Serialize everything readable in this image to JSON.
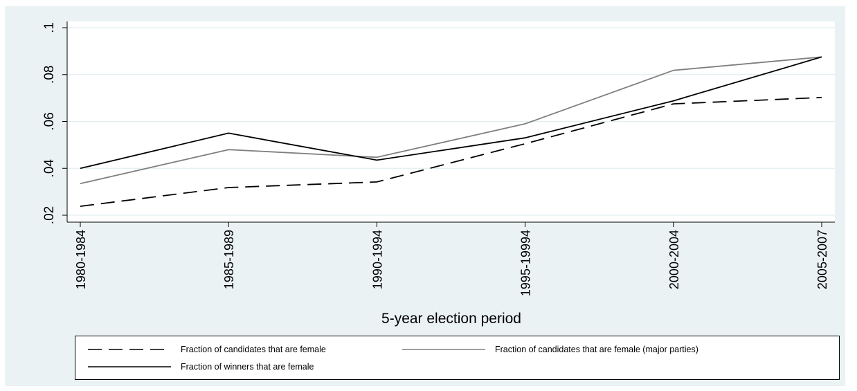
{
  "chart_data": {
    "type": "line",
    "title": "",
    "xlabel": "5-year election period",
    "ylabel": "",
    "categories": [
      "1980-1984",
      "1985-1989",
      "1990-1994",
      "1995-19994",
      "2000-2004",
      "2005-2007"
    ],
    "ylim": [
      0.02,
      0.1
    ],
    "yticks": [
      0.02,
      0.04,
      0.06,
      0.08,
      0.1
    ],
    "ytick_labels": [
      ".02",
      ".04",
      ".06",
      ".08",
      ".1"
    ],
    "grid": true,
    "legend_position": "bottom",
    "series": [
      {
        "name": "Fraction of candidates that are female",
        "values": [
          0.0238,
          0.0318,
          0.0342,
          0.0505,
          0.0675,
          0.0702
        ],
        "color": "#000000",
        "style": "dashed"
      },
      {
        "name": "Fraction of candidates that are female (major parties)",
        "values": [
          0.0335,
          0.048,
          0.0447,
          0.059,
          0.0818,
          0.0875
        ],
        "color": "#7f7f7f",
        "style": "solid"
      },
      {
        "name": "Fraction of winners that are female",
        "values": [
          0.04,
          0.055,
          0.0435,
          0.053,
          0.0688,
          0.0875
        ],
        "color": "#000000",
        "style": "solid"
      }
    ]
  }
}
